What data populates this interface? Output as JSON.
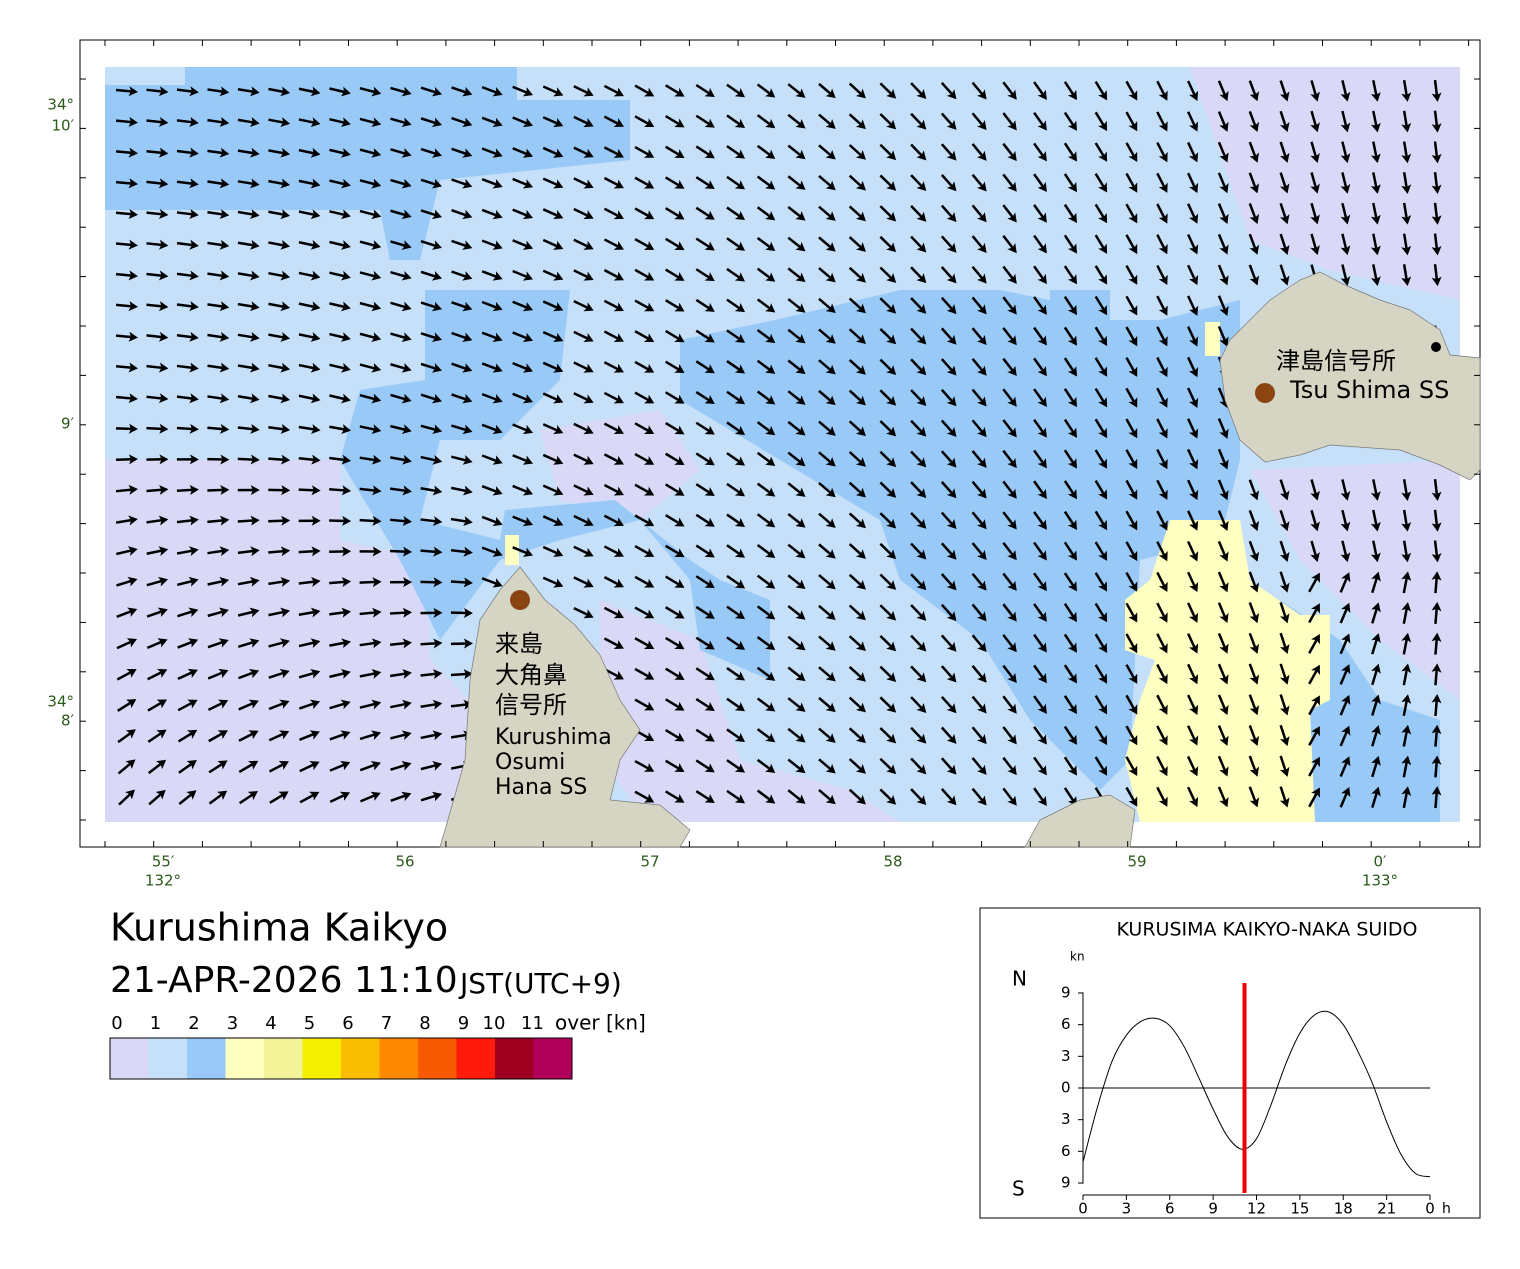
{
  "map": {
    "title": "Kurushima Kaikyo",
    "datetime": "21-APR-2026 11:10",
    "timezone": "JST(UTC+9)",
    "x_ticks": [
      "55′",
      "56",
      "57",
      "58",
      "59",
      "0′"
    ],
    "x_degrees": [
      "132°",
      "133°"
    ],
    "y_ticks": [
      "10′",
      "9′",
      "8′"
    ],
    "y_degrees": [
      "34°",
      "34°"
    ],
    "stations": [
      {
        "name_ja": [
          "津島信号所"
        ],
        "name_en": [
          "Tsu Shima SS"
        ]
      },
      {
        "name_ja": [
          "来島",
          "大角鼻",
          "信号所"
        ],
        "name_en": [
          "Kurushima",
          "Osumi",
          "Hana SS"
        ]
      }
    ],
    "legend": {
      "labels": [
        0,
        1,
        2,
        3,
        4,
        5,
        6,
        7,
        8,
        9,
        10,
        11
      ],
      "unit": "over [kn]",
      "colors": [
        "#d9d9f7",
        "#c6e0fa",
        "#99c9f7",
        "#ffffc2",
        "#f3f39a",
        "#f5ef00",
        "#fbbd00",
        "#ff8a00",
        "#f85a00",
        "#ff1b0c",
        "#a00020",
        "#b0005a"
      ]
    }
  },
  "chart_data": {
    "type": "line",
    "title": "KURUSIMA KAIKYO-NAKA SUIDO",
    "y_unit": "kn",
    "north": "N",
    "south": "S",
    "x_unit": "h",
    "x": [
      0,
      1,
      2,
      3,
      4,
      5,
      6,
      7,
      8,
      9,
      10,
      11,
      12,
      13,
      14,
      15,
      16,
      17,
      18,
      19,
      20,
      21,
      22,
      23,
      24
    ],
    "values": [
      -7.0,
      -1.8,
      2.5,
      5.0,
      6.3,
      6.6,
      5.9,
      3.9,
      1.0,
      -2.0,
      -4.6,
      -5.8,
      -4.8,
      -1.6,
      2.2,
      5.2,
      6.9,
      7.2,
      6.0,
      3.5,
      0.5,
      -3.2,
      -6.3,
      -8.1,
      -8.4
    ],
    "color": "#000000",
    "now": 11.17,
    "now_color": "#ee0000",
    "xlim": [
      0,
      24
    ],
    "xticks": [
      0,
      3,
      6,
      9,
      12,
      15,
      18,
      21,
      {
        "value": 24,
        "label": "0"
      }
    ],
    "ylim": [
      -10,
      10
    ],
    "yticks": [
      {
        "value": -9,
        "label": "9"
      },
      {
        "value": -6,
        "label": "6"
      },
      {
        "value": -3,
        "label": "3"
      },
      0,
      3,
      6,
      9
    ]
  }
}
